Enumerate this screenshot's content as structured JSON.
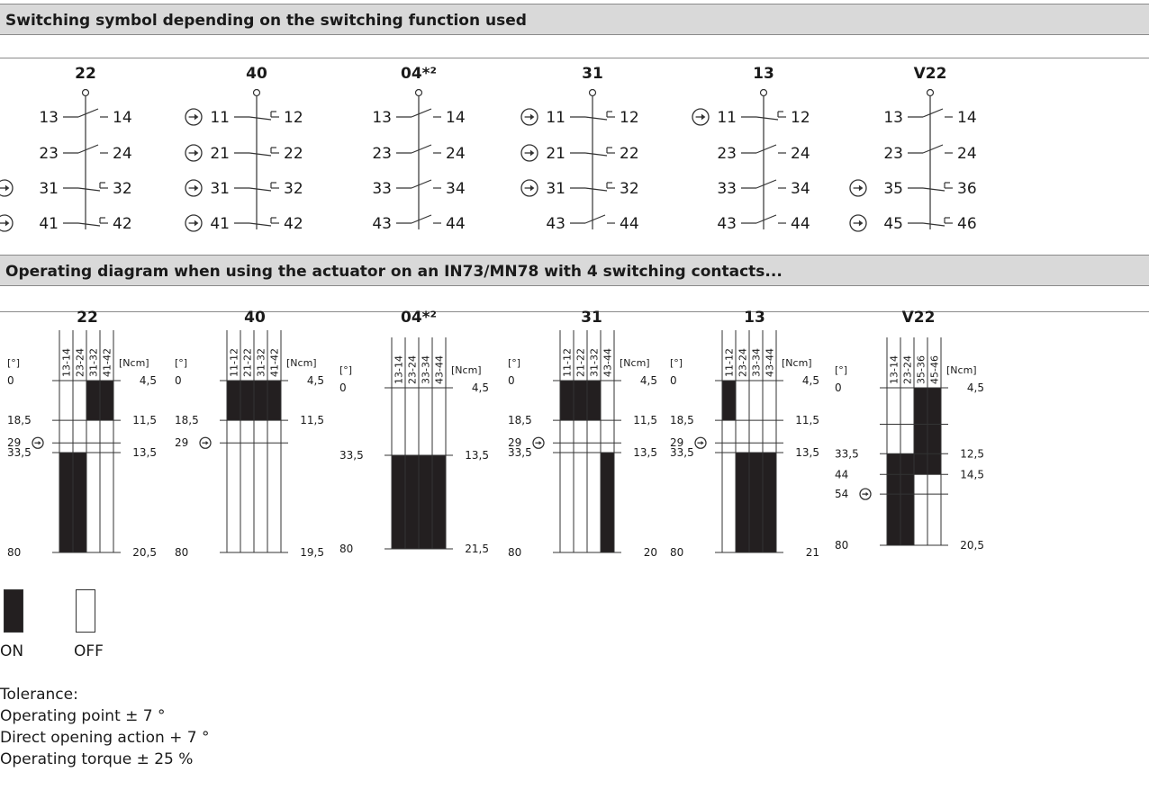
{
  "section1": {
    "title": "Switching symbol depending on the switching function used"
  },
  "section2": {
    "title": "Operating diagram when using the actuator on an IN73/MN78 with 4 switching contacts..."
  },
  "switch_symbols": [
    {
      "title": "22",
      "rows": [
        {
          "left": "13",
          "right": "14",
          "type": "NO",
          "direct": false
        },
        {
          "left": "23",
          "right": "24",
          "type": "NO",
          "direct": false
        },
        {
          "left": "31",
          "right": "32",
          "type": "NC",
          "direct": true
        },
        {
          "left": "41",
          "right": "42",
          "type": "NC",
          "direct": true
        }
      ]
    },
    {
      "title": "40",
      "rows": [
        {
          "left": "11",
          "right": "12",
          "type": "NC",
          "direct": true
        },
        {
          "left": "21",
          "right": "22",
          "type": "NC",
          "direct": true
        },
        {
          "left": "31",
          "right": "32",
          "type": "NC",
          "direct": true
        },
        {
          "left": "41",
          "right": "42",
          "type": "NC",
          "direct": true
        }
      ]
    },
    {
      "title": "04*²",
      "rows": [
        {
          "left": "13",
          "right": "14",
          "type": "NO",
          "direct": false
        },
        {
          "left": "23",
          "right": "24",
          "type": "NO",
          "direct": false
        },
        {
          "left": "33",
          "right": "34",
          "type": "NO",
          "direct": false
        },
        {
          "left": "43",
          "right": "44",
          "type": "NO",
          "direct": false
        }
      ]
    },
    {
      "title": "31",
      "rows": [
        {
          "left": "11",
          "right": "12",
          "type": "NC",
          "direct": true
        },
        {
          "left": "21",
          "right": "22",
          "type": "NC",
          "direct": true
        },
        {
          "left": "31",
          "right": "32",
          "type": "NC",
          "direct": true
        },
        {
          "left": "43",
          "right": "44",
          "type": "NO",
          "direct": false
        }
      ]
    },
    {
      "title": "13",
      "rows": [
        {
          "left": "11",
          "right": "12",
          "type": "NC",
          "direct": true
        },
        {
          "left": "23",
          "right": "24",
          "type": "NO",
          "direct": false
        },
        {
          "left": "33",
          "right": "34",
          "type": "NO",
          "direct": false
        },
        {
          "left": "43",
          "right": "44",
          "type": "NO",
          "direct": false
        }
      ]
    },
    {
      "title": "V22",
      "rows": [
        {
          "left": "13",
          "right": "14",
          "type": "NO",
          "direct": false
        },
        {
          "left": "23",
          "right": "24",
          "type": "NO",
          "direct": false
        },
        {
          "left": "35",
          "right": "36",
          "type": "NC2",
          "direct": true
        },
        {
          "left": "45",
          "right": "46",
          "type": "NC2",
          "direct": true
        }
      ]
    }
  ],
  "operating_diagrams": [
    {
      "title": "22",
      "deg_unit": "[°]",
      "torque_unit": "[Ncm]",
      "contacts": [
        "13-14",
        "23-24",
        "31-32",
        "41-42"
      ],
      "levels": [
        {
          "deg": "0",
          "torque": "4,5",
          "dv": 0
        },
        {
          "deg": "18,5",
          "torque": "11,5",
          "dv": 18.5
        },
        {
          "deg": "29",
          "torque": "",
          "dv": 29,
          "direct": true
        },
        {
          "deg": "33,5",
          "torque": "13,5",
          "dv": 33.5
        },
        {
          "deg": "80",
          "torque": "20,5",
          "dv": 80
        }
      ],
      "on": [
        [
          0,
          33.5,
          80
        ],
        [
          1,
          33.5,
          80
        ],
        [
          2,
          0,
          18.5
        ],
        [
          3,
          0,
          18.5
        ]
      ]
    },
    {
      "title": "40",
      "deg_unit": "[°]",
      "torque_unit": "[Ncm]",
      "contacts": [
        "11-12",
        "21-22",
        "31-32",
        "41-42"
      ],
      "levels": [
        {
          "deg": "0",
          "torque": "4,5",
          "dv": 0
        },
        {
          "deg": "18,5",
          "torque": "11,5",
          "dv": 18.5
        },
        {
          "deg": "29",
          "torque": "",
          "dv": 29,
          "direct": true
        },
        {
          "deg": "80",
          "torque": "19,5",
          "dv": 80
        }
      ],
      "on": [
        [
          0,
          0,
          18.5
        ],
        [
          1,
          0,
          18.5
        ],
        [
          2,
          0,
          18.5
        ],
        [
          3,
          0,
          18.5
        ]
      ]
    },
    {
      "title": "04*²",
      "deg_unit": "[°]",
      "torque_unit": "[Ncm]",
      "contacts": [
        "13-14",
        "23-24",
        "33-34",
        "43-44"
      ],
      "levels": [
        {
          "deg": "0",
          "torque": "4,5",
          "dv": 0
        },
        {
          "deg": "33,5",
          "torque": "13,5",
          "dv": 33.5
        },
        {
          "deg": "80",
          "torque": "21,5",
          "dv": 80
        }
      ],
      "on": [
        [
          0,
          33.5,
          80
        ],
        [
          1,
          33.5,
          80
        ],
        [
          2,
          33.5,
          80
        ],
        [
          3,
          33.5,
          80
        ]
      ]
    },
    {
      "title": "31",
      "deg_unit": "[°]",
      "torque_unit": "[Ncm]",
      "contacts": [
        "11-12",
        "21-22",
        "31-32",
        "43-44"
      ],
      "levels": [
        {
          "deg": "0",
          "torque": "4,5",
          "dv": 0
        },
        {
          "deg": "18,5",
          "torque": "11,5",
          "dv": 18.5
        },
        {
          "deg": "29",
          "torque": "",
          "dv": 29,
          "direct": true
        },
        {
          "deg": "33,5",
          "torque": "13,5",
          "dv": 33.5
        },
        {
          "deg": "80",
          "torque": "20",
          "dv": 80
        }
      ],
      "on": [
        [
          0,
          0,
          18.5
        ],
        [
          1,
          0,
          18.5
        ],
        [
          2,
          0,
          18.5
        ],
        [
          3,
          33.5,
          80
        ]
      ]
    },
    {
      "title": "13",
      "deg_unit": "[°]",
      "torque_unit": "[Ncm]",
      "contacts": [
        "11-12",
        "23-24",
        "33-34",
        "43-44"
      ],
      "levels": [
        {
          "deg": "0",
          "torque": "4,5",
          "dv": 0
        },
        {
          "deg": "18,5",
          "torque": "11,5",
          "dv": 18.5
        },
        {
          "deg": "29",
          "torque": "",
          "dv": 29,
          "direct": true
        },
        {
          "deg": "33,5",
          "torque": "13,5",
          "dv": 33.5
        },
        {
          "deg": "80",
          "torque": "21",
          "dv": 80
        }
      ],
      "on": [
        [
          0,
          0,
          18.5
        ],
        [
          1,
          33.5,
          80
        ],
        [
          2,
          33.5,
          80
        ],
        [
          3,
          33.5,
          80
        ]
      ]
    },
    {
      "title": "V22",
      "deg_unit": "[°]",
      "torque_unit": "[Ncm]",
      "contacts": [
        "13-14",
        "23-24",
        "35-36",
        "45-46"
      ],
      "levels": [
        {
          "deg": "0",
          "torque": "4,5",
          "dv": 0
        },
        {
          "deg": "",
          "torque": "",
          "dv": 18.5
        },
        {
          "deg": "33,5",
          "torque": "12,5",
          "dv": 33.5
        },
        {
          "deg": "44",
          "torque": "14,5",
          "dv": 44
        },
        {
          "deg": "54",
          "torque": "",
          "dv": 54,
          "direct": true
        },
        {
          "deg": "80",
          "torque": "20,5",
          "dv": 80
        }
      ],
      "on": [
        [
          0,
          33.5,
          80
        ],
        [
          1,
          33.5,
          80
        ],
        [
          2,
          0,
          44
        ],
        [
          3,
          0,
          44
        ]
      ]
    }
  ],
  "legend": {
    "on_label": "ON",
    "off_label": "OFF"
  },
  "tolerance": {
    "title": "Tolerance:",
    "lines": [
      "Operating point ± 7 °",
      "Direct opening action + 7 °",
      "Operating torque ± 25 %"
    ]
  },
  "colors": {
    "header_bg": "#d9d9d9",
    "fill_on": "#231f20",
    "line": "#333333"
  }
}
